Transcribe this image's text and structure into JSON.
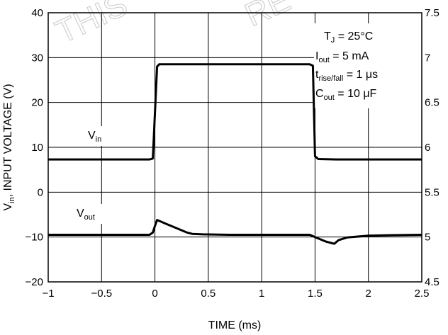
{
  "watermark": [
    "THIS",
    "RE"
  ],
  "chart_data": {
    "type": "line",
    "xlabel": "TIME (ms)",
    "ylabel_parts": [
      "V",
      "in",
      ", INPUT VOLTAGE (V)"
    ],
    "xlim": [
      -1,
      2.5
    ],
    "ylim_left": [
      -20,
      40
    ],
    "ylim_right": [
      4.5,
      7.5
    ],
    "x_ticks": [
      -1,
      -0.5,
      0,
      0.5,
      1,
      1.5,
      2,
      2.5
    ],
    "x_tick_labels": [
      "−1",
      "−0.5",
      "0",
      "0.5",
      "1",
      "1.5",
      "2",
      "2.5"
    ],
    "y_left_ticks": [
      -20,
      -10,
      0,
      10,
      20,
      30,
      40
    ],
    "y_left_tick_labels": [
      "−20",
      "−10",
      "0",
      "10",
      "20",
      "30",
      "40"
    ],
    "y_right_ticks": [
      4.5,
      5,
      5.5,
      6,
      6.5,
      7,
      7.5
    ],
    "y_right_tick_labels": [
      "4.5",
      "5",
      "5.5",
      "6",
      "6.5",
      "7",
      "7.5"
    ],
    "grid": true,
    "series": [
      {
        "name": "Vin",
        "label_main": "V",
        "label_sub": "in",
        "axis": "left",
        "points": [
          [
            -1,
            7.3
          ],
          [
            -0.05,
            7.3
          ],
          [
            -0.02,
            7.5
          ],
          [
            0.02,
            28.0
          ],
          [
            0.04,
            28.5
          ],
          [
            1.45,
            28.5
          ],
          [
            1.48,
            28.2
          ],
          [
            1.5,
            8.0
          ],
          [
            1.53,
            7.4
          ],
          [
            1.7,
            7.3
          ],
          [
            2.5,
            7.3
          ]
        ]
      },
      {
        "name": "Vout",
        "label_main": "V",
        "label_sub": "out",
        "axis": "left",
        "points": [
          [
            -1,
            -9.5
          ],
          [
            -0.05,
            -9.5
          ],
          [
            -0.02,
            -9.0
          ],
          [
            0.0,
            -7.5
          ],
          [
            0.02,
            -6.2
          ],
          [
            0.05,
            -6.5
          ],
          [
            0.1,
            -7.0
          ],
          [
            0.2,
            -8.0
          ],
          [
            0.3,
            -9.0
          ],
          [
            0.35,
            -9.3
          ],
          [
            0.45,
            -9.4
          ],
          [
            0.7,
            -9.5
          ],
          [
            1.45,
            -9.5
          ],
          [
            1.5,
            -10.0
          ],
          [
            1.6,
            -11.0
          ],
          [
            1.68,
            -11.5
          ],
          [
            1.72,
            -10.7
          ],
          [
            1.8,
            -10.1
          ],
          [
            2.0,
            -9.7
          ],
          [
            2.2,
            -9.6
          ],
          [
            2.5,
            -9.5
          ]
        ]
      }
    ],
    "annotations": [
      {
        "main": "T",
        "sub": "J",
        "rest": " = 25°C"
      },
      {
        "main": "I",
        "sub": "out",
        "rest": " = 5 mA"
      },
      {
        "main": "t",
        "sub": "rise/fall",
        "rest": " = 1 μs"
      },
      {
        "main": "C",
        "sub": "out",
        "rest": " = 10 μF"
      }
    ],
    "colors": {
      "line": "#000000",
      "grid": "#000000",
      "background": "#ffffff"
    }
  }
}
